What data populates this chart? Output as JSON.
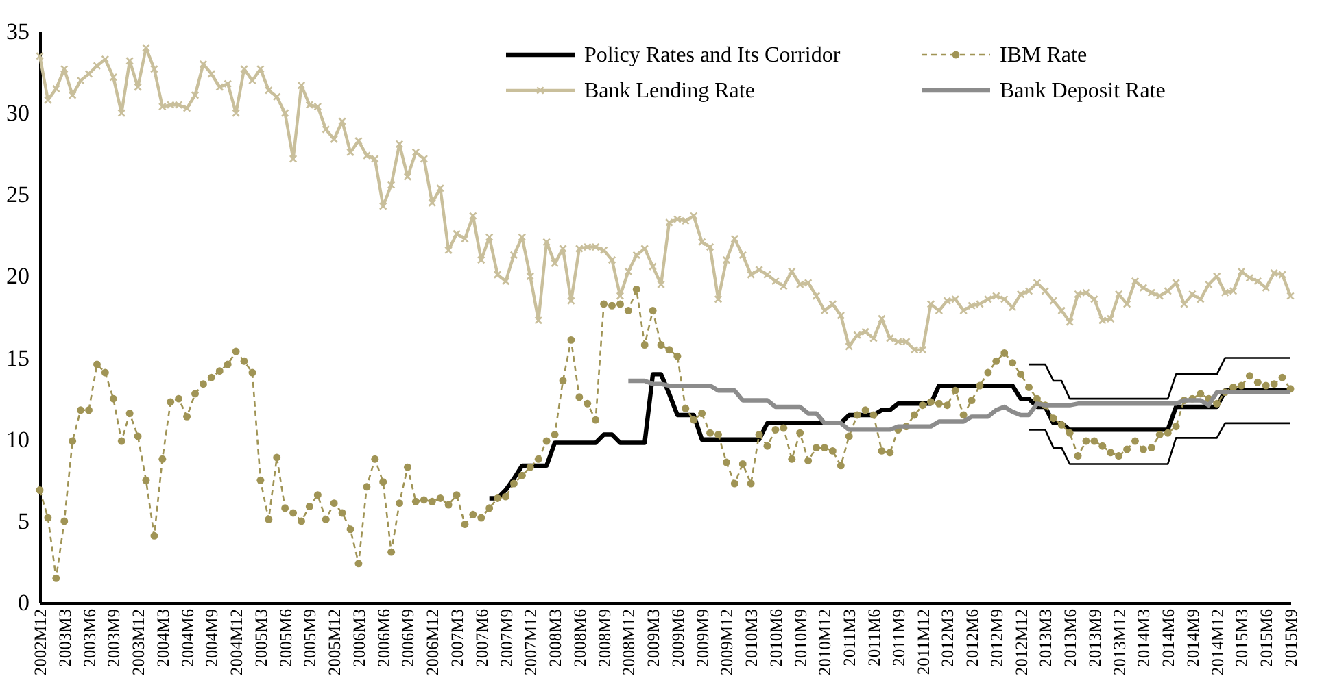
{
  "chart_data": {
    "type": "line",
    "categories": [
      "2002M12",
      null,
      null,
      "2003M3",
      null,
      null,
      "2003M6",
      null,
      null,
      "2003M9",
      null,
      null,
      "2003M12",
      null,
      null,
      "2004M3",
      null,
      null,
      "2004M6",
      null,
      null,
      "2004M9",
      null,
      null,
      "2004M12",
      null,
      null,
      "2005M3",
      null,
      null,
      "2005M6",
      null,
      null,
      "2005M9",
      null,
      null,
      "2005M12",
      null,
      null,
      "2006M3",
      null,
      null,
      "2006M6",
      null,
      null,
      "2006M9",
      null,
      null,
      "2006M12",
      null,
      null,
      "2007M3",
      null,
      null,
      "2007M6",
      null,
      null,
      "2007M9",
      null,
      null,
      "2007M12",
      null,
      null,
      "2008M3",
      null,
      null,
      "2008M6",
      null,
      null,
      "2008M9",
      null,
      null,
      "2008M12",
      null,
      null,
      "2009M3",
      null,
      null,
      "2009M6",
      null,
      null,
      "2009M9",
      null,
      null,
      "2009M12",
      null,
      null,
      "2010M3",
      null,
      null,
      "2010M6",
      null,
      null,
      "2010M9",
      null,
      null,
      "2010M12",
      null,
      null,
      "2011M3",
      null,
      null,
      "2011M6",
      null,
      null,
      "2011M9",
      null,
      null,
      "2011M12",
      null,
      null,
      "2012M3",
      null,
      null,
      "2012M6",
      null,
      null,
      "2012M9",
      null,
      null,
      "2012M12",
      null,
      null,
      "2013M3",
      null,
      null,
      "2013M6",
      null,
      null,
      "2013M9",
      null,
      null,
      "2013M12",
      null,
      null,
      "2014M3",
      null,
      null,
      "2014M6",
      null,
      null,
      "2014M9",
      null,
      null,
      "2014M12",
      null,
      null,
      "2015M3",
      null,
      null,
      "2015M6",
      null,
      null,
      "2015M9"
    ],
    "series": [
      {
        "name": "Policy Rates and Its Corridor",
        "color": "#000000",
        "marker": "none",
        "line_style": "solid",
        "values": [
          null,
          null,
          null,
          null,
          null,
          null,
          null,
          null,
          null,
          null,
          null,
          null,
          null,
          null,
          null,
          null,
          null,
          null,
          null,
          null,
          null,
          null,
          null,
          null,
          null,
          null,
          null,
          null,
          null,
          null,
          null,
          null,
          null,
          null,
          null,
          null,
          null,
          null,
          null,
          null,
          null,
          null,
          null,
          null,
          null,
          null,
          null,
          null,
          null,
          null,
          null,
          null,
          null,
          null,
          null,
          6.4,
          6.4,
          6.9,
          7.6,
          8.4,
          8.4,
          8.4,
          8.4,
          9.8,
          9.8,
          9.8,
          9.8,
          9.8,
          9.8,
          10.3,
          10.3,
          9.8,
          9.8,
          9.8,
          9.8,
          14.0,
          14.0,
          12.8,
          11.5,
          11.5,
          11.5,
          10.0,
          10.0,
          10.0,
          10.0,
          10.0,
          10.0,
          10.0,
          10.0,
          11.0,
          11.0,
          11.0,
          11.0,
          11.0,
          11.0,
          11.0,
          11.0,
          11.0,
          11.0,
          11.5,
          11.5,
          11.5,
          11.5,
          11.8,
          11.8,
          12.2,
          12.2,
          12.2,
          12.2,
          12.2,
          13.3,
          13.3,
          13.3,
          13.3,
          13.3,
          13.3,
          13.3,
          13.3,
          13.3,
          13.3,
          12.5,
          12.5,
          12.0,
          12.0,
          11.0,
          11.0,
          10.6,
          10.6,
          10.6,
          10.6,
          10.6,
          10.6,
          10.6,
          10.6,
          10.6,
          10.6,
          10.6,
          10.6,
          10.6,
          12.0,
          12.0,
          12.0,
          12.0,
          12.0,
          12.0,
          13.0,
          13.0,
          13.0,
          13.0,
          13.0,
          13.0,
          13.0,
          13.0,
          13.0
        ]
      },
      {
        "name": "IBM Rate",
        "color": "#a09455",
        "marker": "circle",
        "line_style": "dashed",
        "values": [
          6.9,
          5.2,
          1.5,
          5.0,
          9.9,
          11.8,
          11.8,
          14.6,
          14.1,
          12.5,
          9.9,
          11.6,
          10.2,
          7.5,
          4.1,
          8.8,
          12.3,
          12.5,
          11.4,
          12.8,
          13.4,
          13.8,
          14.2,
          14.6,
          15.4,
          14.8,
          14.1,
          7.5,
          5.1,
          8.9,
          5.8,
          5.5,
          5.0,
          5.9,
          6.6,
          5.1,
          6.1,
          5.5,
          4.5,
          2.4,
          7.1,
          8.8,
          7.4,
          3.1,
          6.1,
          8.3,
          6.2,
          6.3,
          6.2,
          6.4,
          6.0,
          6.6,
          4.8,
          5.4,
          5.2,
          5.8,
          6.4,
          6.5,
          7.3,
          7.8,
          8.3,
          8.8,
          9.9,
          10.3,
          13.6,
          16.1,
          12.6,
          12.2,
          11.2,
          18.3,
          18.2,
          18.3,
          17.9,
          19.2,
          15.8,
          17.9,
          15.8,
          15.5,
          15.1,
          11.9,
          11.2,
          11.6,
          10.4,
          10.3,
          8.6,
          7.3,
          8.5,
          7.3,
          10.3,
          9.6,
          10.6,
          10.7,
          8.8,
          10.4,
          8.7,
          9.5,
          9.5,
          9.3,
          8.4,
          10.2,
          11.5,
          11.8,
          11.5,
          9.3,
          9.2,
          10.6,
          10.8,
          11.5,
          12.1,
          12.3,
          12.2,
          12.1,
          13.0,
          11.5,
          12.4,
          13.3,
          14.1,
          14.8,
          15.3,
          14.7,
          14.0,
          13.2,
          12.5,
          12.1,
          11.3,
          10.9,
          10.4,
          9.0,
          9.9,
          9.9,
          9.6,
          9.2,
          9.0,
          9.4,
          9.9,
          9.4,
          9.5,
          10.3,
          10.4,
          10.8,
          12.4,
          12.5,
          12.8,
          12.5,
          12.2,
          12.9,
          13.2,
          13.3,
          13.9,
          13.5,
          13.3,
          13.4,
          13.8,
          13.1
        ]
      },
      {
        "name": "Bank Lending Rate",
        "color": "#c9bf9b",
        "marker": "cross",
        "line_style": "solid",
        "values": [
          33.5,
          30.8,
          31.5,
          32.7,
          31.1,
          32.0,
          32.4,
          32.9,
          33.3,
          32.2,
          30.0,
          33.2,
          31.6,
          34.0,
          32.7,
          30.4,
          30.5,
          30.5,
          30.3,
          31.1,
          33.0,
          32.4,
          31.6,
          31.8,
          30.0,
          32.7,
          32.0,
          32.7,
          31.4,
          31.0,
          30.0,
          27.2,
          31.7,
          30.5,
          30.4,
          29.0,
          28.4,
          29.5,
          27.6,
          28.3,
          27.4,
          27.2,
          24.3,
          25.6,
          28.1,
          26.1,
          27.6,
          27.2,
          24.5,
          25.4,
          21.6,
          22.6,
          22.3,
          23.7,
          21.0,
          22.4,
          20.1,
          19.7,
          21.3,
          22.4,
          20.0,
          17.3,
          22.1,
          20.8,
          21.7,
          18.5,
          21.7,
          21.8,
          21.8,
          21.6,
          21.0,
          18.8,
          20.3,
          21.3,
          21.7,
          20.6,
          19.5,
          23.3,
          23.5,
          23.4,
          23.7,
          22.1,
          21.8,
          18.6,
          21.0,
          22.3,
          21.3,
          20.1,
          20.4,
          20.1,
          19.7,
          19.4,
          20.3,
          19.5,
          19.6,
          18.8,
          17.9,
          18.3,
          17.6,
          15.7,
          16.4,
          16.6,
          16.2,
          17.4,
          16.2,
          16.0,
          16.0,
          15.5,
          15.5,
          18.3,
          17.9,
          18.5,
          18.6,
          17.9,
          18.2,
          18.3,
          18.6,
          18.8,
          18.6,
          18.1,
          18.9,
          19.1,
          19.6,
          19.1,
          18.5,
          17.9,
          17.2,
          18.9,
          19.0,
          18.6,
          17.3,
          17.4,
          18.9,
          18.3,
          19.7,
          19.3,
          19.0,
          18.8,
          19.1,
          19.6,
          18.3,
          18.9,
          18.6,
          19.5,
          20.0,
          19.0,
          19.1,
          20.3,
          19.9,
          19.7,
          19.3,
          20.2,
          20.1,
          18.8
        ]
      },
      {
        "name": "Bank Deposit Rate",
        "color": "#8c8c8c",
        "marker": "none",
        "line_style": "solid",
        "values": [
          null,
          null,
          null,
          null,
          null,
          null,
          null,
          null,
          null,
          null,
          null,
          null,
          null,
          null,
          null,
          null,
          null,
          null,
          null,
          null,
          null,
          null,
          null,
          null,
          null,
          null,
          null,
          null,
          null,
          null,
          null,
          null,
          null,
          null,
          null,
          null,
          null,
          null,
          null,
          null,
          null,
          null,
          null,
          null,
          null,
          null,
          null,
          null,
          null,
          null,
          null,
          null,
          null,
          null,
          null,
          null,
          null,
          null,
          null,
          null,
          null,
          null,
          null,
          null,
          null,
          null,
          null,
          null,
          null,
          null,
          null,
          null,
          13.6,
          13.6,
          13.6,
          13.4,
          13.4,
          13.3,
          13.3,
          13.3,
          13.3,
          13.3,
          13.3,
          13.0,
          13.0,
          13.0,
          12.4,
          12.4,
          12.4,
          12.4,
          12.0,
          12.0,
          12.0,
          12.0,
          11.6,
          11.6,
          11.0,
          11.0,
          11.0,
          10.6,
          10.6,
          10.6,
          10.6,
          10.6,
          10.6,
          10.8,
          10.8,
          10.8,
          10.8,
          10.8,
          11.1,
          11.1,
          11.1,
          11.1,
          11.4,
          11.4,
          11.4,
          11.8,
          12.0,
          11.7,
          11.5,
          11.5,
          12.2,
          12.1,
          12.1,
          12.1,
          12.1,
          12.2,
          12.2,
          12.2,
          12.2,
          12.2,
          12.2,
          12.2,
          12.2,
          12.2,
          12.2,
          12.2,
          12.2,
          12.2,
          12.4,
          12.4,
          12.4,
          12.1,
          12.9,
          12.9,
          12.9,
          12.9,
          12.9,
          12.9,
          12.9,
          12.9,
          12.9,
          12.9
        ]
      },
      {
        "color": "#000000",
        "marker": "none",
        "line_style": "solid",
        "values": [
          null,
          null,
          null,
          null,
          null,
          null,
          null,
          null,
          null,
          null,
          null,
          null,
          null,
          null,
          null,
          null,
          null,
          null,
          null,
          null,
          null,
          null,
          null,
          null,
          null,
          null,
          null,
          null,
          null,
          null,
          null,
          null,
          null,
          null,
          null,
          null,
          null,
          null,
          null,
          null,
          null,
          null,
          null,
          null,
          null,
          null,
          null,
          null,
          null,
          null,
          null,
          null,
          null,
          null,
          null,
          null,
          null,
          null,
          null,
          null,
          null,
          null,
          null,
          null,
          null,
          null,
          null,
          null,
          null,
          null,
          null,
          null,
          null,
          null,
          null,
          null,
          null,
          null,
          null,
          null,
          null,
          null,
          null,
          null,
          null,
          null,
          null,
          null,
          null,
          null,
          null,
          null,
          null,
          null,
          null,
          null,
          null,
          null,
          null,
          null,
          null,
          null,
          null,
          null,
          null,
          null,
          null,
          null,
          null,
          null,
          null,
          null,
          null,
          null,
          null,
          null,
          null,
          null,
          null,
          null,
          null,
          14.6,
          14.6,
          14.6,
          13.6,
          13.6,
          12.5,
          12.5,
          12.5,
          12.5,
          12.5,
          12.5,
          12.5,
          12.5,
          12.5,
          12.5,
          12.5,
          12.5,
          12.5,
          14.0,
          14.0,
          14.0,
          14.0,
          14.0,
          14.0,
          15.0,
          15.0,
          15.0,
          15.0,
          15.0,
          15.0,
          15.0,
          15.0,
          15.0
        ]
      },
      {
        "color": "#000000",
        "marker": "none",
        "line_style": "solid",
        "values": [
          null,
          null,
          null,
          null,
          null,
          null,
          null,
          null,
          null,
          null,
          null,
          null,
          null,
          null,
          null,
          null,
          null,
          null,
          null,
          null,
          null,
          null,
          null,
          null,
          null,
          null,
          null,
          null,
          null,
          null,
          null,
          null,
          null,
          null,
          null,
          null,
          null,
          null,
          null,
          null,
          null,
          null,
          null,
          null,
          null,
          null,
          null,
          null,
          null,
          null,
          null,
          null,
          null,
          null,
          null,
          null,
          null,
          null,
          null,
          null,
          null,
          null,
          null,
          null,
          null,
          null,
          null,
          null,
          null,
          null,
          null,
          null,
          null,
          null,
          null,
          null,
          null,
          null,
          null,
          null,
          null,
          null,
          null,
          null,
          null,
          null,
          null,
          null,
          null,
          null,
          null,
          null,
          null,
          null,
          null,
          null,
          null,
          null,
          null,
          null,
          null,
          null,
          null,
          null,
          null,
          null,
          null,
          null,
          null,
          null,
          null,
          null,
          null,
          null,
          null,
          null,
          null,
          null,
          null,
          null,
          null,
          10.6,
          10.6,
          10.6,
          9.5,
          9.5,
          8.5,
          8.5,
          8.5,
          8.5,
          8.5,
          8.5,
          8.5,
          8.5,
          8.5,
          8.5,
          8.5,
          8.5,
          8.5,
          10.1,
          10.1,
          10.1,
          10.1,
          10.1,
          10.1,
          11.0,
          11.0,
          11.0,
          11.0,
          11.0,
          11.0,
          11.0,
          11.0,
          11.0
        ]
      }
    ],
    "ylim": [
      0,
      35
    ],
    "yticks": [
      0,
      5,
      10,
      15,
      20,
      25,
      30,
      35
    ],
    "grid": false,
    "legend": "top right"
  }
}
